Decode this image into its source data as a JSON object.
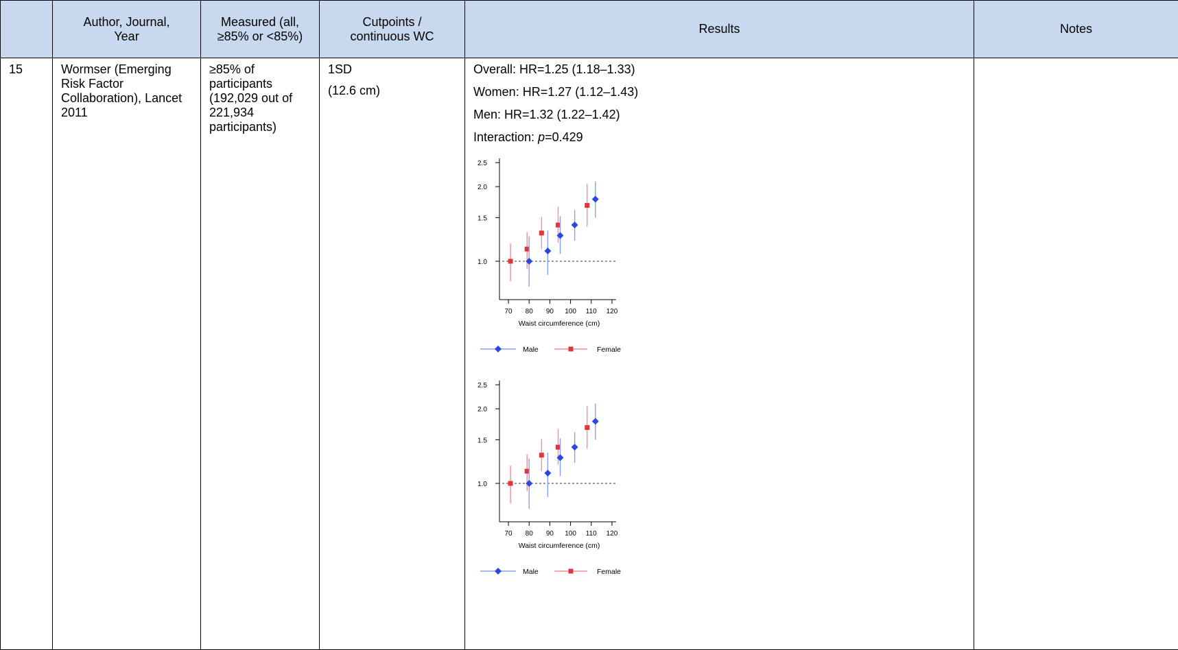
{
  "table": {
    "headers": [
      {
        "lines": [
          ""
        ]
      },
      {
        "lines": [
          "Author, Journal,",
          "Year"
        ]
      },
      {
        "lines": [
          "Measured (all,",
          "≥85% or <85%)"
        ]
      },
      {
        "lines": [
          "Cutpoints /",
          "continuous WC"
        ]
      },
      {
        "lines": [
          "Results"
        ]
      },
      {
        "lines": [
          "Notes"
        ]
      }
    ],
    "row": {
      "number": "15",
      "author": "Wormser (Emerging Risk Factor Collaboration), Lancet 2011",
      "measured": "≥85% of participants (192,029 out of 221,934 participants)",
      "cutpoints": [
        "1SD",
        "(12.6 cm)"
      ],
      "results": {
        "overall": "Overall: HR=1.25 (1.18–1.33)",
        "women": "Women: HR=1.27 (1.12–1.43)",
        "men": "Men: HR=1.32 (1.22–1.42)",
        "interaction_prefix": "Interaction: ",
        "interaction_p": "p",
        "interaction_value": "=0.429"
      },
      "notes": ""
    }
  },
  "chart_data": [
    {
      "type": "scatter",
      "title": "",
      "xlabel": "Waist circumference (cm)",
      "ylabel": "",
      "x_ticks": [
        70,
        80,
        90,
        100,
        110,
        120
      ],
      "y_ticks": [
        1.0,
        1.5,
        2.0,
        2.5
      ],
      "y_tick_labels": [
        "1.0",
        "1.5",
        "2.0",
        "2.5"
      ],
      "xlim": [
        67,
        122
      ],
      "ylim": [
        0.7,
        2.6
      ],
      "y_scale": "log",
      "reference_line": 1.0,
      "legend_position": "bottom",
      "series": [
        {
          "name": "Male",
          "color": "#2b47e0",
          "marker": "diamond",
          "line_color": "#8d9ef0",
          "points": [
            {
              "x": 80,
              "y": 1.0,
              "lo": 0.79,
              "hi": 1.26
            },
            {
              "x": 89,
              "y": 1.1,
              "lo": 0.88,
              "hi": 1.33
            },
            {
              "x": 95,
              "y": 1.27,
              "lo": 1.07,
              "hi": 1.52
            },
            {
              "x": 102,
              "y": 1.4,
              "lo": 1.21,
              "hi": 1.61
            },
            {
              "x": 112,
              "y": 1.78,
              "lo": 1.5,
              "hi": 2.1
            }
          ]
        },
        {
          "name": "Female",
          "color": "#e0353a",
          "marker": "square",
          "line_color": "#ef8f91",
          "points": [
            {
              "x": 71,
              "y": 1.0,
              "lo": 0.83,
              "hi": 1.18
            },
            {
              "x": 79,
              "y": 1.12,
              "lo": 0.93,
              "hi": 1.31
            },
            {
              "x": 86,
              "y": 1.3,
              "lo": 1.12,
              "hi": 1.51
            },
            {
              "x": 94,
              "y": 1.4,
              "lo": 1.19,
              "hi": 1.66
            },
            {
              "x": 108,
              "y": 1.68,
              "lo": 1.38,
              "hi": 2.05
            }
          ]
        }
      ]
    },
    {
      "type": "scatter",
      "title": "",
      "xlabel": "Waist circumference (cm)",
      "ylabel": "",
      "x_ticks": [
        70,
        80,
        90,
        100,
        110,
        120
      ],
      "y_ticks": [
        1.0,
        1.5,
        2.0,
        2.5
      ],
      "y_tick_labels": [
        "1.0",
        "1.5",
        "2.0",
        "2.5"
      ],
      "xlim": [
        67,
        122
      ],
      "ylim": [
        0.7,
        2.6
      ],
      "y_scale": "log",
      "reference_line": 1.0,
      "legend_position": "bottom",
      "series": [
        {
          "name": "Male",
          "color": "#2b47e0",
          "marker": "diamond",
          "line_color": "#8d9ef0",
          "points": [
            {
              "x": 80,
              "y": 1.0,
              "lo": 0.79,
              "hi": 1.26
            },
            {
              "x": 89,
              "y": 1.1,
              "lo": 0.88,
              "hi": 1.33
            },
            {
              "x": 95,
              "y": 1.27,
              "lo": 1.07,
              "hi": 1.52
            },
            {
              "x": 102,
              "y": 1.4,
              "lo": 1.21,
              "hi": 1.61
            },
            {
              "x": 112,
              "y": 1.78,
              "lo": 1.5,
              "hi": 2.1
            }
          ]
        },
        {
          "name": "Female",
          "color": "#e0353a",
          "marker": "square",
          "line_color": "#ef8f91",
          "points": [
            {
              "x": 71,
              "y": 1.0,
              "lo": 0.83,
              "hi": 1.18
            },
            {
              "x": 79,
              "y": 1.12,
              "lo": 0.93,
              "hi": 1.31
            },
            {
              "x": 86,
              "y": 1.3,
              "lo": 1.12,
              "hi": 1.51
            },
            {
              "x": 94,
              "y": 1.4,
              "lo": 1.19,
              "hi": 1.66
            },
            {
              "x": 108,
              "y": 1.68,
              "lo": 1.38,
              "hi": 2.05
            }
          ]
        }
      ]
    }
  ]
}
